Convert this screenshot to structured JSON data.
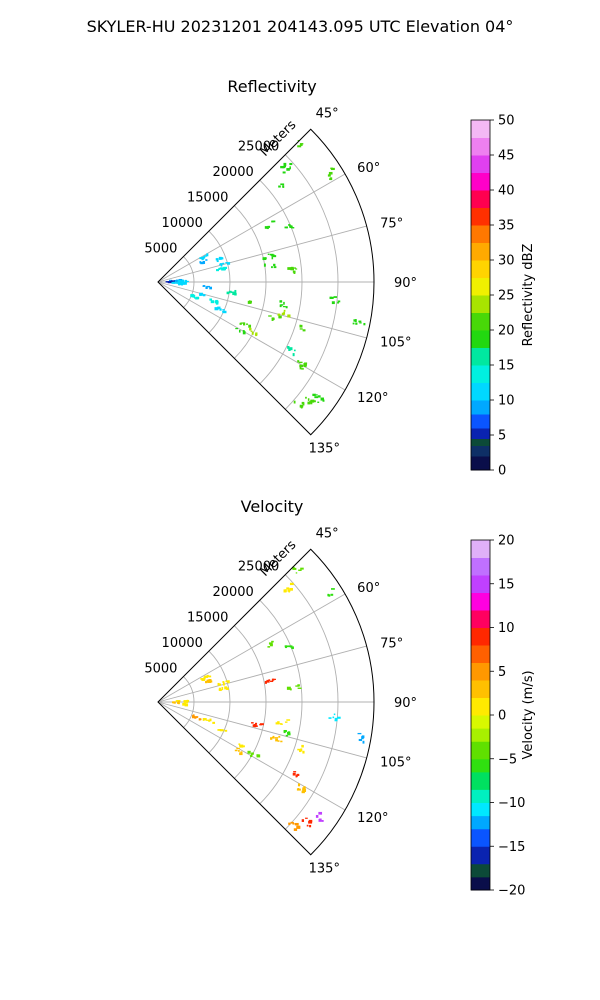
{
  "figure": {
    "suptitle": "SKYLER-HU  20231201  204143.095 UTC Elevation 04°"
  },
  "chart_data": [
    {
      "type": "polar-sector",
      "title": "Reflectivity",
      "radial_label": "Meters",
      "theta_ticks": [
        "45°",
        "60°",
        "75°",
        "90°",
        "105°",
        "120°",
        "135°"
      ],
      "theta_values": [
        45,
        60,
        75,
        90,
        105,
        120,
        135
      ],
      "radial_ticks": [
        "5000",
        "10000",
        "15000",
        "20000",
        "25000"
      ],
      "radial_values": [
        5000,
        10000,
        15000,
        20000,
        25000
      ],
      "rlim": [
        0,
        30000
      ],
      "thetalim": [
        45,
        135
      ],
      "grid": true,
      "colorbar": {
        "label": "Reflectivity dBZ",
        "range": [
          0,
          50
        ],
        "ticks": [
          "0",
          "5",
          "10",
          "15",
          "20",
          "25",
          "30",
          "35",
          "40",
          "45",
          "50"
        ],
        "tick_values": [
          0,
          5,
          10,
          15,
          20,
          25,
          30,
          35,
          40,
          45,
          50
        ]
      },
      "echoes": [
        {
          "theta": 46,
          "r": 27000,
          "value": 20
        },
        {
          "theta": 48,
          "r": 24000,
          "value": 18
        },
        {
          "theta": 52,
          "r": 22000,
          "value": 19
        },
        {
          "theta": 58,
          "r": 28500,
          "value": 20
        },
        {
          "theta": 63,
          "r": 17500,
          "value": 18
        },
        {
          "theta": 67,
          "r": 20000,
          "value": 19
        },
        {
          "theta": 62,
          "r": 7500,
          "value": 11
        },
        {
          "theta": 66,
          "r": 7000,
          "value": 9
        },
        {
          "theta": 70,
          "r": 8800,
          "value": 12
        },
        {
          "theta": 75,
          "r": 9500,
          "value": 12
        },
        {
          "theta": 79,
          "r": 9000,
          "value": 13
        },
        {
          "theta": 77,
          "r": 15800,
          "value": 18
        },
        {
          "theta": 82,
          "r": 15800,
          "value": 19
        },
        {
          "theta": 85,
          "r": 19000,
          "value": 20
        },
        {
          "theta": 86,
          "r": 2500,
          "value": 8
        },
        {
          "theta": 88,
          "r": 3500,
          "value": 10
        },
        {
          "theta": 90,
          "r": 1500,
          "value": 5
        },
        {
          "theta": 92,
          "r": 2800,
          "value": 11
        },
        {
          "theta": 94,
          "r": 3200,
          "value": 12
        },
        {
          "theta": 96,
          "r": 6800,
          "value": 8
        },
        {
          "theta": 98,
          "r": 10500,
          "value": 15
        },
        {
          "theta": 100,
          "r": 17500,
          "value": 19
        },
        {
          "theta": 101,
          "r": 28500,
          "value": 18
        },
        {
          "theta": 96,
          "r": 24500,
          "value": 19
        },
        {
          "theta": 102,
          "r": 13200,
          "value": 20
        },
        {
          "theta": 104,
          "r": 18000,
          "value": 24
        },
        {
          "theta": 107,
          "r": 17000,
          "value": 22
        },
        {
          "theta": 108,
          "r": 21000,
          "value": 21
        },
        {
          "theta": 106,
          "r": 6000,
          "value": 12
        },
        {
          "theta": 109,
          "r": 8000,
          "value": 14
        },
        {
          "theta": 112,
          "r": 5300,
          "value": 13
        },
        {
          "theta": 114,
          "r": 9500,
          "value": 11
        },
        {
          "theta": 116,
          "r": 13500,
          "value": 20
        },
        {
          "theta": 118,
          "r": 15000,
          "value": 23
        },
        {
          "theta": 120,
          "r": 13200,
          "value": 19
        },
        {
          "theta": 117,
          "r": 21000,
          "value": 17
        },
        {
          "theta": 120,
          "r": 23000,
          "value": 20
        },
        {
          "theta": 128,
          "r": 26500,
          "value": 21
        },
        {
          "theta": 131,
          "r": 26000,
          "value": 20
        },
        {
          "theta": 126,
          "r": 27500,
          "value": 19
        }
      ]
    },
    {
      "type": "polar-sector",
      "title": "Velocity",
      "radial_label": "Meters",
      "theta_ticks": [
        "45°",
        "60°",
        "75°",
        "90°",
        "105°",
        "120°",
        "135°"
      ],
      "theta_values": [
        45,
        60,
        75,
        90,
        105,
        120,
        135
      ],
      "radial_ticks": [
        "5000",
        "10000",
        "15000",
        "20000",
        "25000"
      ],
      "radial_values": [
        5000,
        10000,
        15000,
        20000,
        25000
      ],
      "rlim": [
        0,
        30000
      ],
      "thetalim": [
        45,
        135
      ],
      "grid": true,
      "colorbar": {
        "label": "Velocity (m/s)",
        "range": [
          -20,
          20
        ],
        "ticks": [
          "−20",
          "−15",
          "−10",
          "−5",
          "0",
          "5",
          "10",
          "15",
          "20"
        ],
        "tick_values": [
          -20,
          -15,
          -10,
          -5,
          0,
          5,
          10,
          15,
          20
        ]
      },
      "echoes": [
        {
          "theta": 46,
          "r": 27000,
          "value": -5
        },
        {
          "theta": 49,
          "r": 24000,
          "value": 1
        },
        {
          "theta": 58,
          "r": 28500,
          "value": -6
        },
        {
          "theta": 63,
          "r": 17500,
          "value": -5
        },
        {
          "theta": 67,
          "r": 20000,
          "value": -6
        },
        {
          "theta": 63,
          "r": 7500,
          "value": 1
        },
        {
          "theta": 68,
          "r": 8000,
          "value": 2
        },
        {
          "theta": 74,
          "r": 9500,
          "value": 1
        },
        {
          "theta": 79,
          "r": 9200,
          "value": 0
        },
        {
          "theta": 80,
          "r": 15800,
          "value": 8
        },
        {
          "theta": 84,
          "r": 19000,
          "value": -5
        },
        {
          "theta": 88,
          "r": 3500,
          "value": 1
        },
        {
          "theta": 92,
          "r": 2800,
          "value": 2
        },
        {
          "theta": 95,
          "r": 3300,
          "value": 1
        },
        {
          "theta": 95,
          "r": 24500,
          "value": -11
        },
        {
          "theta": 100,
          "r": 28500,
          "value": -12
        },
        {
          "theta": 99,
          "r": 17500,
          "value": 0
        },
        {
          "theta": 103,
          "r": 14000,
          "value": 8
        },
        {
          "theta": 104,
          "r": 18500,
          "value": -6
        },
        {
          "theta": 107,
          "r": 17200,
          "value": 2
        },
        {
          "theta": 108,
          "r": 21000,
          "value": 1
        },
        {
          "theta": 110,
          "r": 7500,
          "value": 1
        },
        {
          "theta": 112,
          "r": 5600,
          "value": 5
        },
        {
          "theta": 114,
          "r": 9500,
          "value": 1
        },
        {
          "theta": 117,
          "r": 13500,
          "value": 1
        },
        {
          "theta": 119,
          "r": 15200,
          "value": -5
        },
        {
          "theta": 121,
          "r": 13200,
          "value": 2
        },
        {
          "theta": 118,
          "r": 21200,
          "value": 8
        },
        {
          "theta": 121,
          "r": 23000,
          "value": 2
        },
        {
          "theta": 125,
          "r": 27500,
          "value": 15
        },
        {
          "theta": 129,
          "r": 26500,
          "value": 9
        },
        {
          "theta": 132,
          "r": 25500,
          "value": 4
        }
      ]
    }
  ]
}
